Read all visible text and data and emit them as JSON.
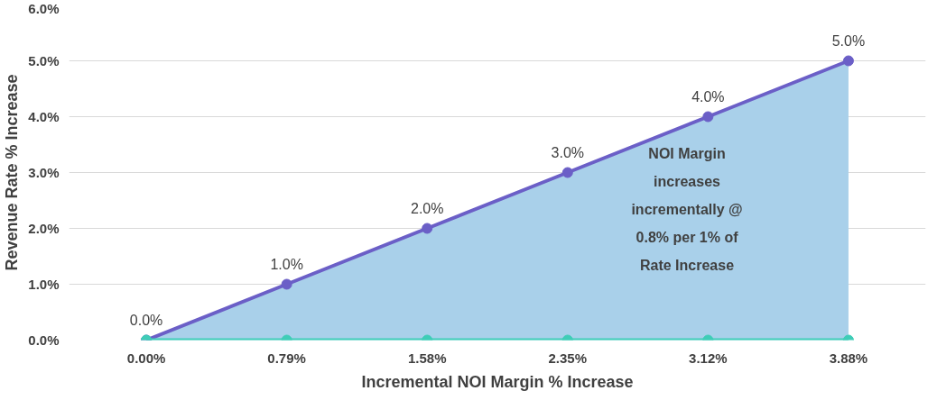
{
  "chart_data": {
    "type": "line",
    "xlabel": "Incremental NOI Margin % Increase",
    "ylabel": "Revenue Rate % Increase",
    "categories": [
      "0.00%",
      "0.79%",
      "1.58%",
      "2.35%",
      "3.12%",
      "3.88%"
    ],
    "series": [
      {
        "color": "#6b5fc7",
        "values": [
          0,
          1,
          2,
          3,
          4,
          5
        ],
        "marker": "circle",
        "lower": [
          0,
          0,
          0,
          0,
          0,
          0
        ],
        "upper": [
          0,
          1,
          2,
          3,
          4,
          5
        ],
        "value_labels": [
          "0.0%",
          "1.0%",
          "2.0%",
          "3.0%",
          "4.0%",
          "5.0%"
        ]
      },
      {
        "color": "#3fcdb7",
        "values": [
          0,
          0,
          0,
          0,
          0,
          0
        ],
        "marker": "circle"
      }
    ],
    "ylim": [
      0,
      6
    ],
    "yticks": [
      {
        "value": 0,
        "label": "0.0%"
      },
      {
        "value": 1,
        "label": "1.0%"
      },
      {
        "value": 2,
        "label": "2.0%"
      },
      {
        "value": 3,
        "label": "3.0%"
      },
      {
        "value": 4,
        "label": "4.0%"
      },
      {
        "value": 5,
        "label": "5.0%"
      },
      {
        "value": 6,
        "label": "6.0%"
      }
    ],
    "grid": "y",
    "annotations": [
      "NOI Margin\nincreases\nincrementally @\n0.8% per 1% of\nRate Increase"
    ]
  }
}
